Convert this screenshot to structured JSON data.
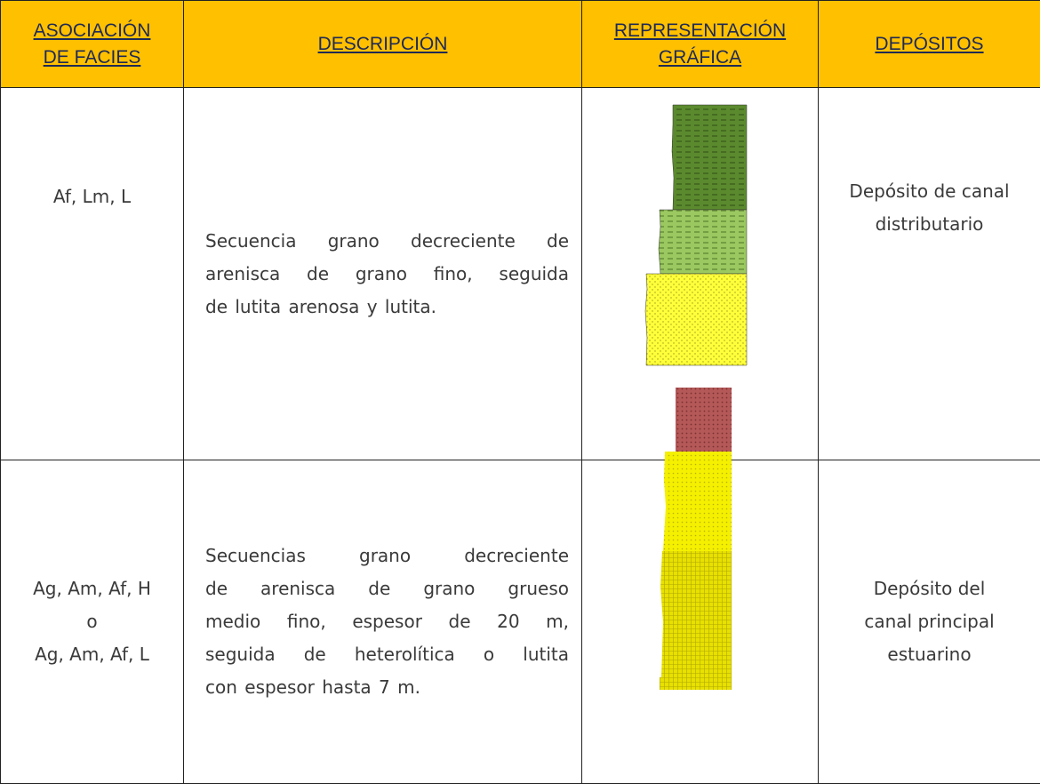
{
  "table": {
    "headers": [
      [
        "ASOCIACIÓN",
        "DE FACIES"
      ],
      [
        "DESCRIPCIÓN"
      ],
      [
        "REPRESENTACIÓN",
        "GRÁFICA"
      ],
      [
        "DEPÓSITOS"
      ]
    ],
    "rows": [
      {
        "facies": [
          "Af, Lm, L"
        ],
        "description": [
          "Secuencia grano decreciente de",
          "arenisca de grano fino, seguida",
          "de lutita arenosa y lutita."
        ],
        "deposit": [
          "Depósito de canal",
          "distributario"
        ]
      },
      {
        "facies": [
          "Ag, Am, Af, H",
          "o",
          "Ag, Am, Af, L"
        ],
        "description": [
          "Secuencias grano decreciente",
          "de arenisca de grano grueso",
          "medio fino, espesor de 20 m,",
          "seguida de heterolítica o lutita",
          "con espesor hasta 7 m."
        ],
        "deposit": [
          "Depósito del",
          "canal principal",
          "estuarino"
        ]
      }
    ]
  }
}
